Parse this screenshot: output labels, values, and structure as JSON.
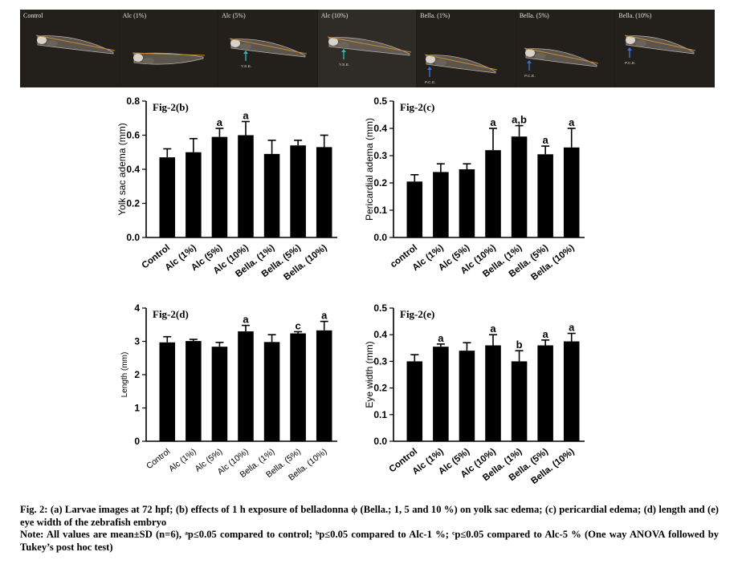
{
  "larvae_images": [
    {
      "label": "Control",
      "annotation": ""
    },
    {
      "label": "Alc (1%)",
      "annotation": ""
    },
    {
      "label": "Alc (5%)",
      "annotation": "Y.S.E."
    },
    {
      "label": "Alc (10%)",
      "annotation": "Y.S.E."
    },
    {
      "label": "Bella. (1%)",
      "annotation": "P.C.E."
    },
    {
      "label": "Bella. (5%)",
      "annotation": "P.C.E."
    },
    {
      "label": "Bella. (10%)",
      "annotation": "P.C.E."
    }
  ],
  "chart_data": [
    {
      "type": "bar",
      "panel_title": "Fig-2(b)",
      "ylabel": "Yolk sac adema (mm)",
      "categories": [
        "Control",
        "Alc (1%)",
        "Alc (5%)",
        "Alc (10%)",
        "Bella. (1%)",
        "Bella. (5%)",
        "Bella. (10%)"
      ],
      "values": [
        0.47,
        0.5,
        0.59,
        0.6,
        0.49,
        0.54,
        0.53
      ],
      "errors": [
        0.05,
        0.08,
        0.05,
        0.08,
        0.08,
        0.03,
        0.07
      ],
      "significance": [
        "",
        "",
        "a",
        "a",
        "",
        "",
        ""
      ],
      "ylim": [
        0,
        0.8
      ],
      "yticks": [
        "0.0",
        "0.2",
        "0.4",
        "0.6",
        "0.8"
      ]
    },
    {
      "type": "bar",
      "panel_title": "Fig-2(c)",
      "ylabel": "Pericardial adema (mm)",
      "categories": [
        "control",
        "Alc (1%)",
        "Alc (5%)",
        "Alc (10%)",
        "Bella. (1%)",
        "Bella. (5%)",
        "Bella. (10%)"
      ],
      "values": [
        0.205,
        0.24,
        0.25,
        0.32,
        0.37,
        0.305,
        0.33
      ],
      "errors": [
        0.025,
        0.03,
        0.02,
        0.08,
        0.04,
        0.03,
        0.07
      ],
      "significance": [
        "",
        "",
        "",
        "a",
        "a,b",
        "a",
        "a"
      ],
      "ylim": [
        0,
        0.5
      ],
      "yticks": [
        "0.0",
        "0.1",
        "0.2",
        "0.3",
        "0.4",
        "0.5"
      ]
    },
    {
      "type": "bar",
      "panel_title": "Fig-2(d)",
      "ylabel": "Length (mm)",
      "categories": [
        "Control",
        "Alc (1%)",
        "Alc (5%)",
        "Alc (10%)",
        "Bella. (1%)",
        "Bella. (5%)",
        "Bella. (10%)"
      ],
      "values": [
        2.97,
        3.01,
        2.84,
        3.3,
        2.98,
        3.24,
        3.33
      ],
      "errors": [
        0.17,
        0.05,
        0.13,
        0.18,
        0.22,
        0.05,
        0.27
      ],
      "significance": [
        "",
        "",
        "",
        "a",
        "",
        "c",
        "a"
      ],
      "ylim": [
        0,
        4
      ],
      "yticks": [
        "0",
        "1",
        "2",
        "3",
        "4"
      ]
    },
    {
      "type": "bar",
      "panel_title": "Fig-2(e)",
      "ylabel": "Eye width (mm)",
      "categories": [
        "Control",
        "Alc (1%)",
        "Alc (5%)",
        "Alc (10%)",
        "Bella. (1%)",
        "Bella. (5%)",
        "Bella. (10%)"
      ],
      "values": [
        0.3,
        0.355,
        0.34,
        0.36,
        0.3,
        0.36,
        0.375
      ],
      "errors": [
        0.025,
        0.01,
        0.03,
        0.04,
        0.04,
        0.02,
        0.03
      ],
      "significance": [
        "",
        "a",
        "",
        "a",
        "b",
        "a",
        "a"
      ],
      "ylim": [
        0,
        0.5
      ],
      "yticks": [
        "0.0",
        "0.1",
        "0.2",
        "0.3",
        "0.4",
        "0.5"
      ]
    }
  ],
  "caption": {
    "line1": "Fig. 2: (a) Larvae images at 72 hpf; (b) effects of 1 h exposure of belladonna ϕ (Bella.; 1, 5 and 10 %) on yolk sac edema; (c) pericardial edema; (d) length and (e) eye width of the zebrafish embryo",
    "line2": "Note: All values are mean±SD (n=6), ᵃp≤0.05 compared to control; ᵇp≤0.05 compared to Alc-1 %; ᶜp≤0.05 compared to Alc-5 % (One way ANOVA followed by Tukey’s post hoc test)"
  },
  "colors": {
    "bar": "#000000",
    "image_bg": "#1d1a17",
    "length_line": "#c58a35",
    "arrow": "#3b6fd6",
    "arrow_teal": "#33b4b4"
  }
}
